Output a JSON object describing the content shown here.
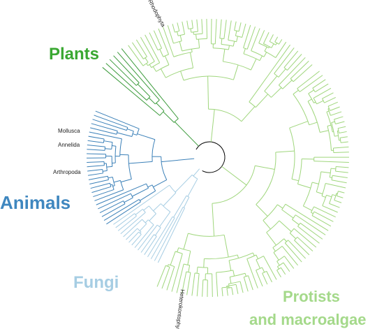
{
  "labels": {
    "plants": "Plants",
    "animals": "Animals",
    "fungi": "Fungi",
    "protists": [
      "Protists",
      "and macroalgae"
    ]
  },
  "clades": {
    "rhodophyta": "Rhodophyta",
    "mollusca": "Mollusca",
    "annelida": "Annelida",
    "arthropoda": "Arthropoda",
    "heterokontophyta": "Heterokontophyta"
  }
}
